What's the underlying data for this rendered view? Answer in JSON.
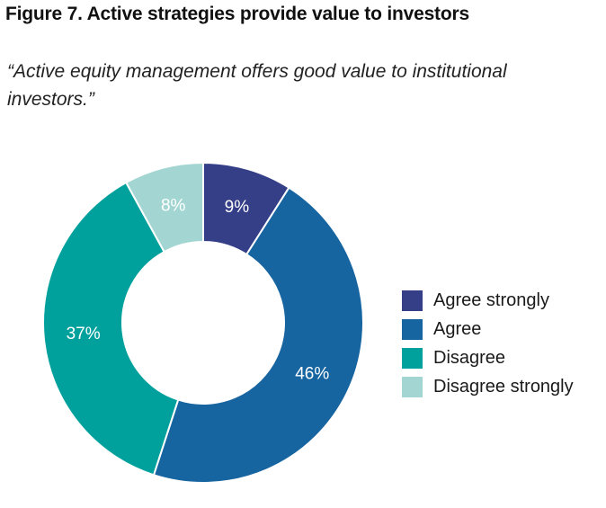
{
  "figure": {
    "title": "Figure 7. Active strategies provide value to investors",
    "subtitle": "“Active equity management offers good value to institutional investors.”"
  },
  "chart_data": {
    "type": "pie",
    "subtype": "donut",
    "title": "Figure 7. Active strategies provide value to investors",
    "subtitle": "“Active equity management offers good value to institutional investors.”",
    "categories": [
      "Agree strongly",
      "Agree",
      "Disagree",
      "Disagree strongly"
    ],
    "values": [
      9,
      46,
      37,
      8
    ],
    "data_labels": [
      "9%",
      "46%",
      "37%",
      "8%"
    ],
    "colors": [
      "#353f87",
      "#1664a0",
      "#00a19d",
      "#a3d6d2"
    ],
    "label_color": "#ffffff",
    "start": "top, clockwise",
    "legend_position": "right"
  }
}
